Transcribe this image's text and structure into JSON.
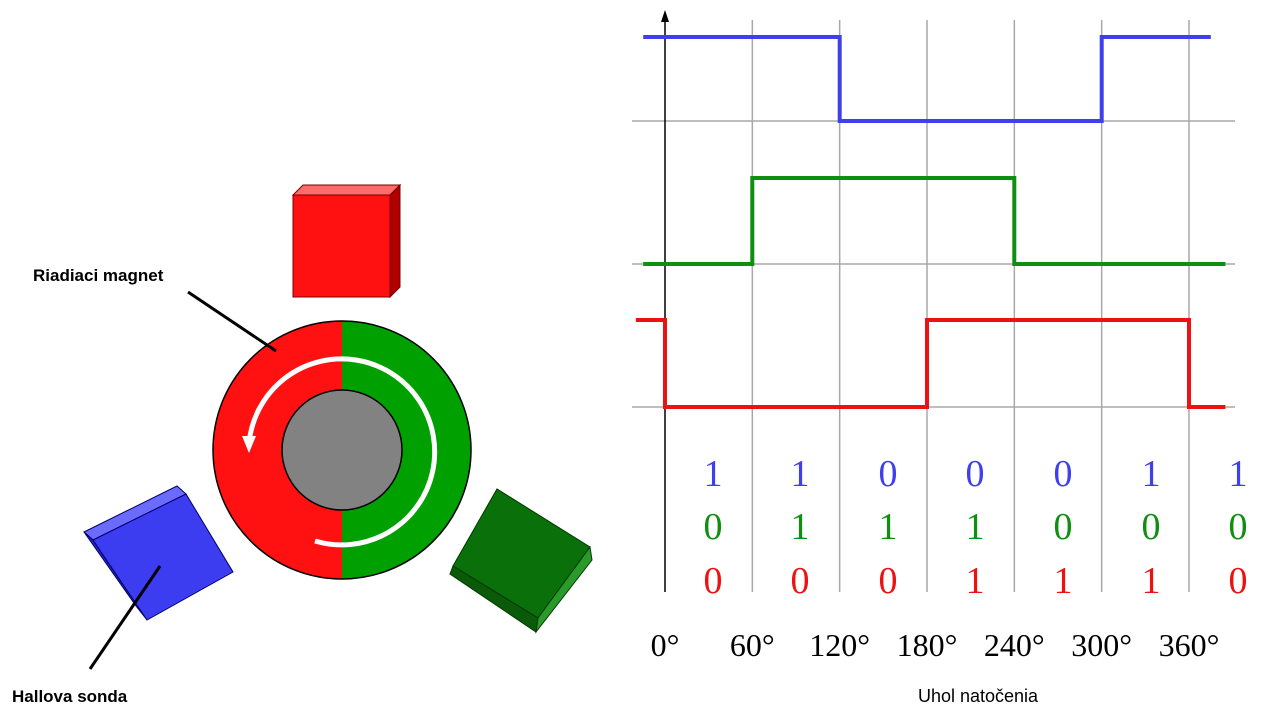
{
  "labels": {
    "control_magnet": "Riadiaci magnet",
    "hall_probe": "Hallova sonda"
  },
  "colors": {
    "red": "#ee1111",
    "green": "#0f8f0f",
    "blue": "#3f3fee",
    "hub": "#828282"
  },
  "chart_data": {
    "type": "line",
    "xlabel": "Uhol natočenia",
    "x_ticks": [
      "0°",
      "60°",
      "120°",
      "180°",
      "240°",
      "300°",
      "360°"
    ],
    "x_unit": "degrees",
    "series": [
      {
        "color": "blue",
        "segment_bits": [
          "1",
          "1",
          "0",
          "0",
          "0",
          "1",
          "1"
        ],
        "points": [
          [
            -15,
            1
          ],
          [
            120,
            1
          ],
          [
            120,
            0
          ],
          [
            300,
            0
          ],
          [
            300,
            1
          ],
          [
            375,
            1
          ]
        ]
      },
      {
        "color": "green",
        "segment_bits": [
          "0",
          "1",
          "1",
          "1",
          "0",
          "0",
          "0"
        ],
        "points": [
          [
            -15,
            0
          ],
          [
            60,
            0
          ],
          [
            60,
            1
          ],
          [
            240,
            1
          ],
          [
            240,
            0
          ],
          [
            385,
            0
          ]
        ]
      },
      {
        "color": "red",
        "segment_bits": [
          "0",
          "0",
          "0",
          "1",
          "1",
          "1",
          "0"
        ],
        "points": [
          [
            -20,
            1
          ],
          [
            0,
            1
          ],
          [
            0,
            0
          ],
          [
            180,
            0
          ],
          [
            180,
            1
          ],
          [
            360,
            1
          ],
          [
            360,
            0
          ],
          [
            385,
            0
          ]
        ]
      }
    ]
  }
}
